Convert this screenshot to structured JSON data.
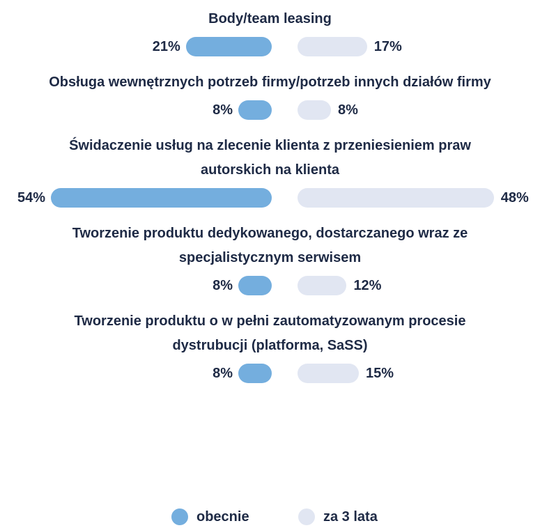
{
  "chart_data": {
    "type": "butterfly",
    "categories": [
      "Body/team leasing",
      "Obsługa wewnętrznych potrzeb firmy/potrzeb innych działów firmy",
      "Świdaczenie usług na zlecenie klienta z przeniesieniem praw autorskich na klienta",
      "Tworzenie produktu dedykowanego, dostarczanego wraz ze specjalistycznym serwisem",
      "Tworzenie produktu o w pełni zautomatyzowanym procesie dystrubucji (platforma, SaSS)"
    ],
    "series": [
      {
        "name": "obecnie",
        "color": "#74aede",
        "values": [
          21,
          8,
          54,
          8,
          8
        ],
        "value_labels": [
          "21%",
          "8%",
          "54%",
          "8%",
          "8%"
        ]
      },
      {
        "name": "za 3 lata",
        "color": "#e1e6f2",
        "values": [
          17,
          8,
          48,
          12,
          15
        ],
        "value_labels": [
          "17%",
          "8%",
          "48%",
          "12%",
          "15%"
        ]
      }
    ]
  }
}
